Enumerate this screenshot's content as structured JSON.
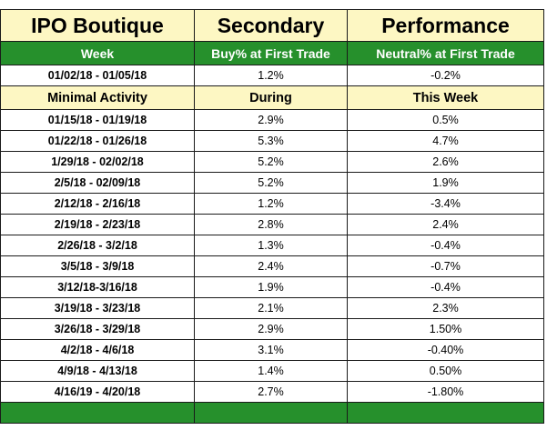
{
  "headers": {
    "col1": "IPO Boutique",
    "col2": "Secondary",
    "col3": "Performance"
  },
  "subheaders": {
    "col1": "Week",
    "col2": "Buy% at First Trade",
    "col3": "Neutral% at First Trade"
  },
  "first_row": {
    "week": "01/02/18 - 01/05/18",
    "buy": "1.2%",
    "neutral": "-0.2%"
  },
  "minimal_activity": {
    "col1": "Minimal Activity",
    "col2": "During",
    "col3": "This Week"
  },
  "rows": [
    {
      "week": "01/15/18 - 01/19/18",
      "buy": "2.9%",
      "neutral": "0.5%"
    },
    {
      "week": "01/22/18 - 01/26/18",
      "buy": "5.3%",
      "neutral": "4.7%"
    },
    {
      "week": "1/29/18 - 02/02/18",
      "buy": "5.2%",
      "neutral": "2.6%"
    },
    {
      "week": "2/5/18 - 02/09/18",
      "buy": "5.2%",
      "neutral": "1.9%"
    },
    {
      "week": "2/12/18 - 2/16/18",
      "buy": "1.2%",
      "neutral": "-3.4%"
    },
    {
      "week": "2/19/18 - 2/23/18",
      "buy": "2.8%",
      "neutral": "2.4%"
    },
    {
      "week": "2/26/18 - 3/2/18",
      "buy": "1.3%",
      "neutral": "-0.4%"
    },
    {
      "week": "3/5/18 - 3/9/18",
      "buy": "2.4%",
      "neutral": "-0.7%"
    },
    {
      "week": "3/12/18-3/16/18",
      "buy": "1.9%",
      "neutral": "-0.4%"
    },
    {
      "week": "3/19/18 - 3/23/18",
      "buy": "2.1%",
      "neutral": "2.3%"
    },
    {
      "week": "3/26/18 - 3/29/18",
      "buy": "2.9%",
      "neutral": "1.50%"
    },
    {
      "week": "4/2/18 - 4/6/18",
      "buy": "3.1%",
      "neutral": "-0.40%"
    },
    {
      "week": "4/9/18 - 4/13/18",
      "buy": "1.4%",
      "neutral": "0.50%"
    },
    {
      "week": "4/16/19 - 4/20/18",
      "buy": "2.7%",
      "neutral": "-1.80%"
    }
  ],
  "colors": {
    "header_bg": "#fdf7c3",
    "green": "#26902c",
    "border": "#1a1a1a"
  }
}
